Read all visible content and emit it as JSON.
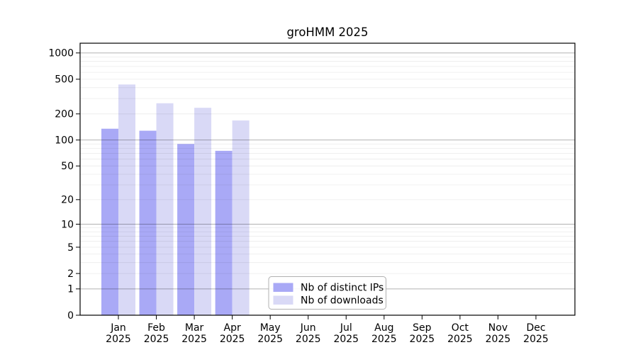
{
  "chart_data": {
    "type": "bar",
    "title": "groHMM 2025",
    "xlabel": "",
    "ylabel": "",
    "y_scale": "log10(value+1), zero at baseline",
    "ylim": [
      0,
      1300
    ],
    "y_ticks": [
      1000,
      500,
      200,
      100,
      50,
      20,
      10,
      5,
      2,
      1,
      0
    ],
    "grid": "horizontal gridlines; major at 1,10,100,1000; minor at 2-9 of each decade; drawn over bars",
    "legend_position": "inside plot, lower center-left box",
    "categories": [
      {
        "month": "Jan",
        "year": "2025"
      },
      {
        "month": "Feb",
        "year": "2025"
      },
      {
        "month": "Mar",
        "year": "2025"
      },
      {
        "month": "Apr",
        "year": "2025"
      },
      {
        "month": "May",
        "year": "2025"
      },
      {
        "month": "Jun",
        "year": "2025"
      },
      {
        "month": "Jul",
        "year": "2025"
      },
      {
        "month": "Aug",
        "year": "2025"
      },
      {
        "month": "Sep",
        "year": "2025"
      },
      {
        "month": "Oct",
        "year": "2025"
      },
      {
        "month": "Nov",
        "year": "2025"
      },
      {
        "month": "Dec",
        "year": "2025"
      }
    ],
    "series": [
      {
        "name": "Nb of distinct IPs",
        "color": "#a9a9f6",
        "values": [
          135,
          128,
          90,
          75,
          null,
          null,
          null,
          null,
          null,
          null,
          null,
          null
        ]
      },
      {
        "name": "Nb of downloads",
        "color": "#d9d9f6",
        "values": [
          435,
          265,
          235,
          168,
          null,
          null,
          null,
          null,
          null,
          null,
          null,
          null
        ]
      }
    ]
  }
}
